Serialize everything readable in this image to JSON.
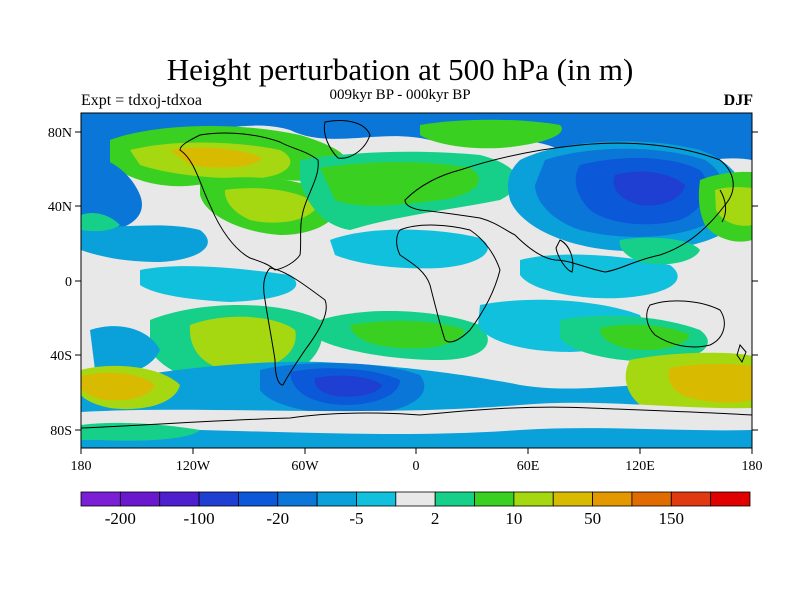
{
  "title": "Height perturbation at 500 hPa (in m)",
  "left_label": "Expt = tdxoj-tdxoa",
  "center_label": "009kyr BP - 000kyr BP",
  "right_label": "DJF",
  "y_ticks": [
    "80N",
    "40N",
    "0",
    "40S",
    "80S"
  ],
  "x_ticks": [
    "180",
    "120W",
    "60W",
    "0",
    "60E",
    "120E",
    "180"
  ],
  "colorbar": {
    "colors": [
      "#7a1fd6",
      "#6a18d0",
      "#4d1fcf",
      "#1e3fd1",
      "#0b58d8",
      "#0a77d8",
      "#0aa0d9",
      "#11c0dc",
      "#e8e8e8",
      "#16d08a",
      "#3ad022",
      "#a6d811",
      "#d8bb00",
      "#e39800",
      "#e06b00",
      "#df3a10",
      "#e00000"
    ],
    "labels": [
      "-200",
      "-100",
      "-20",
      "-5",
      "2",
      "10",
      "50",
      "150"
    ]
  },
  "colors": {
    "background": "#e8e8e8",
    "coastline": "#000000"
  }
}
